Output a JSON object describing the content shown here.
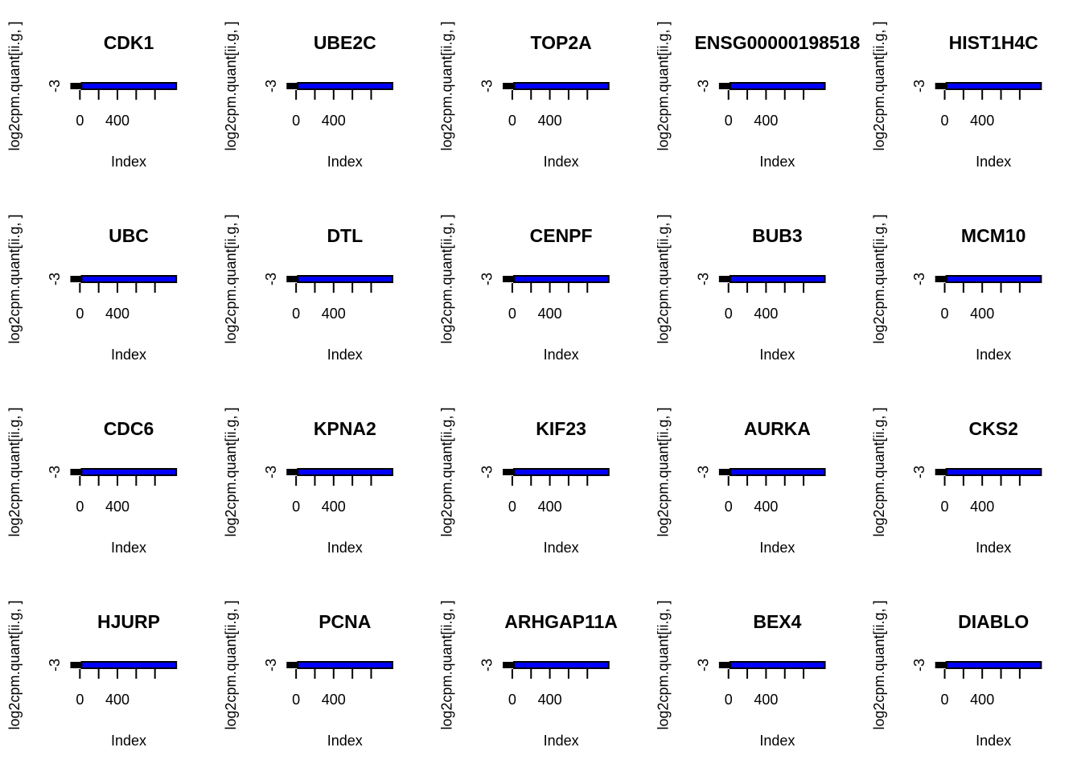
{
  "chart_data": [
    {
      "type": "line",
      "title": "CDK1",
      "xlabel": "Index",
      "ylabel": "log2cpm.quant[ii.g, ]",
      "x_tick_labels": [
        "0",
        "400"
      ],
      "y_tick_labels": [
        "-3"
      ],
      "xlim": [
        -80,
        1000
      ],
      "ylim": [
        -3.4,
        -2.6
      ],
      "series": [
        {
          "x": [
            1,
            40,
            100,
            400,
            600,
            950
          ],
          "values": [
            -3,
            -3,
            -3,
            -3,
            -3,
            -3
          ],
          "line_color": "#000000",
          "fill_color": "#0000ff"
        }
      ]
    },
    {
      "type": "line",
      "title": "UBE2C",
      "xlabel": "Index",
      "ylabel": "log2cpm.quant[ii.g, ]",
      "x_tick_labels": [
        "0",
        "400"
      ],
      "y_tick_labels": [
        "-3"
      ],
      "xlim": [
        -80,
        1000
      ],
      "ylim": [
        -3.4,
        -2.6
      ],
      "series": [
        {
          "x": [
            1,
            40,
            100,
            400,
            600,
            950
          ],
          "values": [
            -3,
            -3,
            -3,
            -3,
            -3,
            -3
          ],
          "line_color": "#000000",
          "fill_color": "#0000ff"
        }
      ]
    },
    {
      "type": "line",
      "title": "TOP2A",
      "xlabel": "Index",
      "ylabel": "log2cpm.quant[ii.g, ]",
      "x_tick_labels": [
        "0",
        "400"
      ],
      "y_tick_labels": [
        "-3"
      ],
      "xlim": [
        -80,
        1000
      ],
      "ylim": [
        -3.4,
        -2.6
      ],
      "series": [
        {
          "x": [
            1,
            40,
            100,
            400,
            600,
            950
          ],
          "values": [
            -3,
            -3,
            -3,
            -3,
            -3,
            -3
          ],
          "line_color": "#000000",
          "fill_color": "#0000ff"
        }
      ]
    },
    {
      "type": "line",
      "title": "ENSG00000198518",
      "xlabel": "Index",
      "ylabel": "log2cpm.quant[ii.g, ]",
      "x_tick_labels": [
        "0",
        "400"
      ],
      "y_tick_labels": [
        "-3"
      ],
      "xlim": [
        -80,
        1000
      ],
      "ylim": [
        -3.4,
        -2.6
      ],
      "series": [
        {
          "x": [
            1,
            40,
            100,
            400,
            600,
            950
          ],
          "values": [
            -3,
            -3,
            -3,
            -3,
            -3,
            -3
          ],
          "line_color": "#000000",
          "fill_color": "#0000ff"
        }
      ]
    },
    {
      "type": "line",
      "title": "HIST1H4C",
      "xlabel": "Index",
      "ylabel": "log2cpm.quant[ii.g, ]",
      "x_tick_labels": [
        "0",
        "400"
      ],
      "y_tick_labels": [
        "-3"
      ],
      "xlim": [
        -80,
        1000
      ],
      "ylim": [
        -3.4,
        -2.6
      ],
      "series": [
        {
          "x": [
            1,
            40,
            100,
            400,
            600,
            950
          ],
          "values": [
            -3,
            -3,
            -3,
            -3,
            -3,
            -3
          ],
          "line_color": "#000000",
          "fill_color": "#0000ff"
        }
      ]
    },
    {
      "type": "line",
      "title": "UBC",
      "xlabel": "Index",
      "ylabel": "log2cpm.quant[ii.g, ]",
      "x_tick_labels": [
        "0",
        "400"
      ],
      "y_tick_labels": [
        "-3"
      ],
      "xlim": [
        -80,
        1000
      ],
      "ylim": [
        -3.4,
        -2.6
      ],
      "series": [
        {
          "x": [
            1,
            40,
            100,
            400,
            600,
            950
          ],
          "values": [
            -3,
            -3,
            -3,
            -3,
            -3,
            -3
          ],
          "line_color": "#000000",
          "fill_color": "#0000ff"
        }
      ]
    },
    {
      "type": "line",
      "title": "DTL",
      "xlabel": "Index",
      "ylabel": "log2cpm.quant[ii.g, ]",
      "x_tick_labels": [
        "0",
        "400"
      ],
      "y_tick_labels": [
        "-3"
      ],
      "xlim": [
        -80,
        1000
      ],
      "ylim": [
        -3.4,
        -2.6
      ],
      "series": [
        {
          "x": [
            1,
            40,
            100,
            400,
            600,
            950
          ],
          "values": [
            -3,
            -3,
            -3,
            -3,
            -3,
            -3
          ],
          "line_color": "#000000",
          "fill_color": "#0000ff"
        }
      ]
    },
    {
      "type": "line",
      "title": "CENPF",
      "xlabel": "Index",
      "ylabel": "log2cpm.quant[ii.g, ]",
      "x_tick_labels": [
        "0",
        "400"
      ],
      "y_tick_labels": [
        "-3"
      ],
      "xlim": [
        -80,
        1000
      ],
      "ylim": [
        -3.4,
        -2.6
      ],
      "series": [
        {
          "x": [
            1,
            40,
            100,
            400,
            600,
            950
          ],
          "values": [
            -3,
            -3,
            -3,
            -3,
            -3,
            -3
          ],
          "line_color": "#000000",
          "fill_color": "#0000ff"
        }
      ]
    },
    {
      "type": "line",
      "title": "BUB3",
      "xlabel": "Index",
      "ylabel": "log2cpm.quant[ii.g, ]",
      "x_tick_labels": [
        "0",
        "400"
      ],
      "y_tick_labels": [
        "-3"
      ],
      "xlim": [
        -80,
        1000
      ],
      "ylim": [
        -3.4,
        -2.6
      ],
      "series": [
        {
          "x": [
            1,
            40,
            100,
            400,
            600,
            950
          ],
          "values": [
            -3,
            -3,
            -3,
            -3,
            -3,
            -3
          ],
          "line_color": "#000000",
          "fill_color": "#0000ff"
        }
      ]
    },
    {
      "type": "line",
      "title": "MCM10",
      "xlabel": "Index",
      "ylabel": "log2cpm.quant[ii.g, ]",
      "x_tick_labels": [
        "0",
        "400"
      ],
      "y_tick_labels": [
        "-3"
      ],
      "xlim": [
        -80,
        1000
      ],
      "ylim": [
        -3.4,
        -2.6
      ],
      "series": [
        {
          "x": [
            1,
            40,
            100,
            400,
            600,
            950
          ],
          "values": [
            -3,
            -3,
            -3,
            -3,
            -3,
            -3
          ],
          "line_color": "#000000",
          "fill_color": "#0000ff"
        }
      ]
    },
    {
      "type": "line",
      "title": "CDC6",
      "xlabel": "Index",
      "ylabel": "log2cpm.quant[ii.g, ]",
      "x_tick_labels": [
        "0",
        "400"
      ],
      "y_tick_labels": [
        "-3"
      ],
      "xlim": [
        -80,
        1000
      ],
      "ylim": [
        -3.4,
        -2.6
      ],
      "series": [
        {
          "x": [
            1,
            40,
            100,
            400,
            600,
            950
          ],
          "values": [
            -3,
            -3,
            -3,
            -3,
            -3,
            -3
          ],
          "line_color": "#000000",
          "fill_color": "#0000ff"
        }
      ]
    },
    {
      "type": "line",
      "title": "KPNA2",
      "xlabel": "Index",
      "ylabel": "log2cpm.quant[ii.g, ]",
      "x_tick_labels": [
        "0",
        "400"
      ],
      "y_tick_labels": [
        "-3"
      ],
      "xlim": [
        -80,
        1000
      ],
      "ylim": [
        -3.4,
        -2.6
      ],
      "series": [
        {
          "x": [
            1,
            40,
            100,
            400,
            600,
            950
          ],
          "values": [
            -3,
            -3,
            -3,
            -3,
            -3,
            -3
          ],
          "line_color": "#000000",
          "fill_color": "#0000ff"
        }
      ]
    },
    {
      "type": "line",
      "title": "KIF23",
      "xlabel": "Index",
      "ylabel": "log2cpm.quant[ii.g, ]",
      "x_tick_labels": [
        "0",
        "400"
      ],
      "y_tick_labels": [
        "-3"
      ],
      "xlim": [
        -80,
        1000
      ],
      "ylim": [
        -3.4,
        -2.6
      ],
      "series": [
        {
          "x": [
            1,
            40,
            100,
            400,
            600,
            950
          ],
          "values": [
            -3,
            -3,
            -3,
            -3,
            -3,
            -3
          ],
          "line_color": "#000000",
          "fill_color": "#0000ff"
        }
      ]
    },
    {
      "type": "line",
      "title": "AURKA",
      "xlabel": "Index",
      "ylabel": "log2cpm.quant[ii.g, ]",
      "x_tick_labels": [
        "0",
        "400"
      ],
      "y_tick_labels": [
        "-3"
      ],
      "xlim": [
        -80,
        1000
      ],
      "ylim": [
        -3.4,
        -2.6
      ],
      "series": [
        {
          "x": [
            1,
            40,
            100,
            400,
            600,
            950
          ],
          "values": [
            -3,
            -3,
            -3,
            -3,
            -3,
            -3
          ],
          "line_color": "#000000",
          "fill_color": "#0000ff"
        }
      ]
    },
    {
      "type": "line",
      "title": "CKS2",
      "xlabel": "Index",
      "ylabel": "log2cpm.quant[ii.g, ]",
      "x_tick_labels": [
        "0",
        "400"
      ],
      "y_tick_labels": [
        "-3"
      ],
      "xlim": [
        -80,
        1000
      ],
      "ylim": [
        -3.4,
        -2.6
      ],
      "series": [
        {
          "x": [
            1,
            40,
            100,
            400,
            600,
            950
          ],
          "values": [
            -3,
            -3,
            -3,
            -3,
            -3,
            -3
          ],
          "line_color": "#000000",
          "fill_color": "#0000ff"
        }
      ]
    },
    {
      "type": "line",
      "title": "HJURP",
      "xlabel": "Index",
      "ylabel": "log2cpm.quant[ii.g, ]",
      "x_tick_labels": [
        "0",
        "400"
      ],
      "y_tick_labels": [
        "-3"
      ],
      "xlim": [
        -80,
        1000
      ],
      "ylim": [
        -3.4,
        -2.6
      ],
      "series": [
        {
          "x": [
            1,
            40,
            100,
            400,
            600,
            950
          ],
          "values": [
            -3,
            -3,
            -3,
            -3,
            -3,
            -3
          ],
          "line_color": "#000000",
          "fill_color": "#0000ff"
        }
      ]
    },
    {
      "type": "line",
      "title": "PCNA",
      "xlabel": "Index",
      "ylabel": "log2cpm.quant[ii.g, ]",
      "x_tick_labels": [
        "0",
        "400"
      ],
      "y_tick_labels": [
        "-3"
      ],
      "xlim": [
        -80,
        1000
      ],
      "ylim": [
        -3.4,
        -2.6
      ],
      "series": [
        {
          "x": [
            1,
            40,
            100,
            400,
            600,
            950
          ],
          "values": [
            -3,
            -3,
            -3,
            -3,
            -3,
            -3
          ],
          "line_color": "#000000",
          "fill_color": "#0000ff"
        }
      ]
    },
    {
      "type": "line",
      "title": "ARHGAP11A",
      "xlabel": "Index",
      "ylabel": "log2cpm.quant[ii.g, ]",
      "x_tick_labels": [
        "0",
        "400"
      ],
      "y_tick_labels": [
        "-3"
      ],
      "xlim": [
        -80,
        1000
      ],
      "ylim": [
        -3.4,
        -2.6
      ],
      "series": [
        {
          "x": [
            1,
            40,
            100,
            400,
            600,
            950
          ],
          "values": [
            -3,
            -3,
            -3,
            -3,
            -3,
            -3
          ],
          "line_color": "#000000",
          "fill_color": "#0000ff"
        }
      ]
    },
    {
      "type": "line",
      "title": "BEX4",
      "xlabel": "Index",
      "ylabel": "log2cpm.quant[ii.g, ]",
      "x_tick_labels": [
        "0",
        "400"
      ],
      "y_tick_labels": [
        "-3"
      ],
      "xlim": [
        -80,
        1000
      ],
      "ylim": [
        -3.4,
        -2.6
      ],
      "series": [
        {
          "x": [
            1,
            40,
            100,
            400,
            600,
            950
          ],
          "values": [
            -3,
            -3,
            -3,
            -3,
            -3,
            -3
          ],
          "line_color": "#000000",
          "fill_color": "#0000ff"
        }
      ]
    },
    {
      "type": "line",
      "title": "DIABLO",
      "xlabel": "Index",
      "ylabel": "log2cpm.quant[ii.g, ]",
      "x_tick_labels": [
        "0",
        "400"
      ],
      "y_tick_labels": [
        "-3"
      ],
      "xlim": [
        -80,
        1000
      ],
      "ylim": [
        -3.4,
        -2.6
      ],
      "series": [
        {
          "x": [
            1,
            40,
            100,
            400,
            600,
            950
          ],
          "values": [
            -3,
            -3,
            -3,
            -3,
            -3,
            -3
          ],
          "line_color": "#000000",
          "fill_color": "#0000ff"
        }
      ]
    }
  ]
}
